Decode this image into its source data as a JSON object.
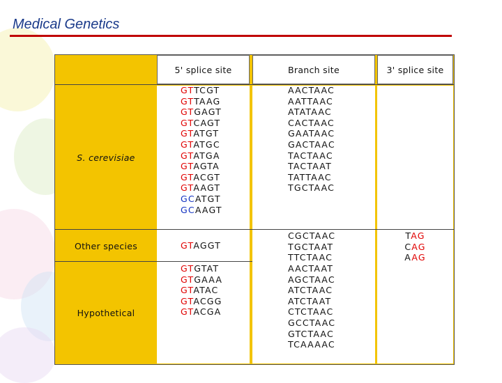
{
  "title": "Medical Genetics",
  "table": {
    "headers": {
      "five_prime": "5' splice site",
      "branch": "Branch site",
      "three_prime": "3' splice site"
    },
    "rows": [
      {
        "label": "S. cerevisiae",
        "five_prime": [
          {
            "prefix": "GT",
            "prefix_color": "red",
            "rest": "TCGT"
          },
          {
            "prefix": "GT",
            "prefix_color": "red",
            "rest": "TAAG"
          },
          {
            "prefix": "GT",
            "prefix_color": "red",
            "rest": "GAGT"
          },
          {
            "prefix": "GT",
            "prefix_color": "red",
            "rest": "CAGT"
          },
          {
            "prefix": "GT",
            "prefix_color": "red",
            "rest": "ATGT"
          },
          {
            "prefix": "GT",
            "prefix_color": "red",
            "rest": "ATGC"
          },
          {
            "prefix": "GT",
            "prefix_color": "red",
            "rest": "ATGA"
          },
          {
            "prefix": "GT",
            "prefix_color": "red",
            "rest": "AGTA"
          },
          {
            "prefix": "GT",
            "prefix_color": "red",
            "rest": "ACGT"
          },
          {
            "prefix": "GT",
            "prefix_color": "red",
            "rest": "AAGT"
          },
          {
            "prefix": "GC",
            "prefix_color": "blue",
            "rest": "ATGT"
          },
          {
            "prefix": "GC",
            "prefix_color": "blue",
            "rest": "AAGT"
          }
        ],
        "branch": [
          "AACTAAC",
          "AATTAAC",
          "ATATAAC",
          "CACTAAC",
          "GAATAAC",
          "GACTAAC",
          "TACTAAC",
          "TACTAAT",
          "TATTAAC",
          "TGCTAAC"
        ]
      },
      {
        "label": "Other species",
        "five_prime": [
          {
            "prefix": "GT",
            "prefix_color": "red",
            "rest": "AGGT"
          }
        ],
        "branch": [
          "CGCTAAC",
          "TGCTAAT",
          "TTCTAAC"
        ],
        "three_prime": [
          {
            "prefix": "T",
            "suffix": "AG"
          },
          {
            "prefix": "C",
            "suffix": "AG"
          },
          {
            "prefix": "A",
            "suffix": "AG"
          }
        ]
      },
      {
        "label": "Hypothetical",
        "five_prime": [
          {
            "prefix": "GT",
            "prefix_color": "red",
            "rest": "GTAT"
          },
          {
            "prefix": "GT",
            "prefix_color": "red",
            "rest": "GAAA"
          },
          {
            "prefix": "GT",
            "prefix_color": "red",
            "rest": "ATAC"
          },
          {
            "prefix": "GT",
            "prefix_color": "red",
            "rest": "ACGG"
          },
          {
            "prefix": "GT",
            "prefix_color": "red",
            "rest": "ACGA"
          }
        ],
        "branch": [
          "AACTAAT",
          "AGCTAAC",
          "ATCTAAC",
          "ATCTAAT",
          "CTCTAAC",
          "GCCTAAC",
          "GTCTAAC",
          "TCAAAAC"
        ]
      }
    ]
  },
  "colors": {
    "highlight_red": "#e00000",
    "highlight_blue": "#1030c0",
    "table_yellow": "#f3c400",
    "title_blue": "#1a3a8a",
    "title_rule": "#c00000"
  }
}
